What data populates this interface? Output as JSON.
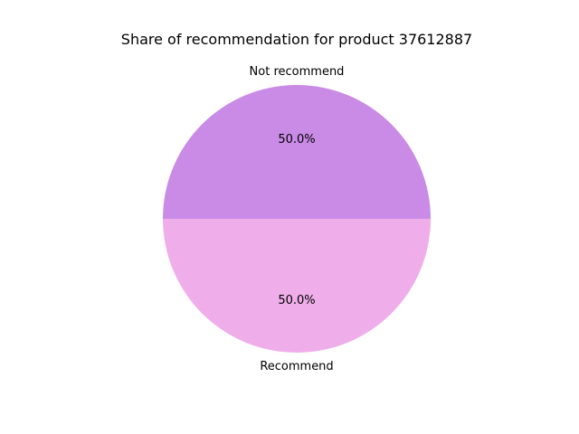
{
  "chart_data": {
    "type": "pie",
    "title": "Share of recommendation for product 37612887",
    "categories": [
      "Not recommend",
      "Recommend"
    ],
    "values": [
      50.0,
      50.0
    ],
    "percent_labels": [
      "50.0%",
      "50.0%"
    ],
    "colors": [
      "#c98be6",
      "#efaeea"
    ],
    "start_angle_deg": 0,
    "direction": "counterclockwise"
  }
}
